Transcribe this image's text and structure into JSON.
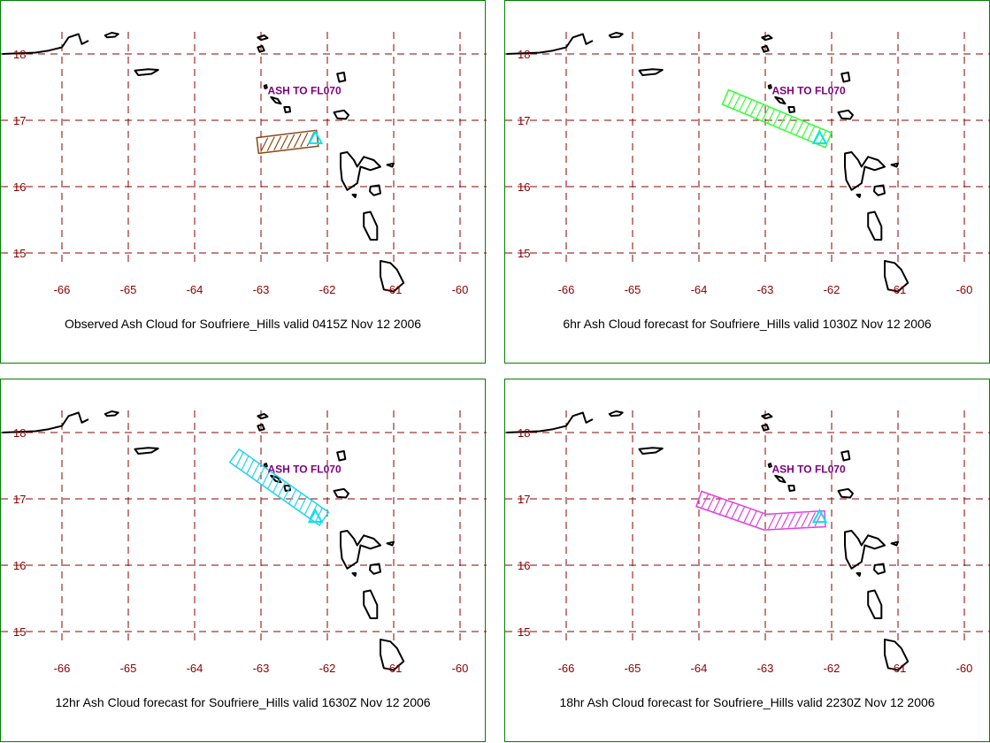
{
  "colors": {
    "frame": "#008000",
    "grid": "#8b0000",
    "tick_labels": "#8b0000",
    "coastline": "#000000",
    "annotation": "#800080",
    "vent_marker": "#00e5ee"
  },
  "map": {
    "lon_range": [
      -66.5,
      -59.8
    ],
    "lat_range": [
      14.5,
      18.4
    ],
    "lon_ticks": [
      -66,
      -65,
      -64,
      -63,
      -62,
      -61,
      -60
    ],
    "lat_ticks": [
      18,
      17,
      16,
      15
    ],
    "grid": "dashed"
  },
  "panels": [
    {
      "caption": "Observed Ash Cloud for Soufriere_Hills valid 0415Z Nov 12 2006",
      "annotation": "ASH TO FL070",
      "cloud_color": "#8b4513",
      "cloud_path": [
        [
          -63.05,
          16.62
        ],
        [
          -62.15,
          16.73
        ]
      ]
    },
    {
      "caption": "6hr Ash Cloud forecast for Soufriere_Hills valid 1030Z Nov 12 2006",
      "annotation": "ASH TO FL070",
      "cloud_color": "#33ff33",
      "cloud_path": [
        [
          -63.6,
          17.35
        ],
        [
          -62.05,
          16.7
        ]
      ]
    },
    {
      "caption": "12hr Ash Cloud forecast for Soufriere_Hills valid 1630Z Nov 12 2006",
      "annotation": "ASH TO FL070",
      "cloud_color": "#22d3ee",
      "cloud_path": [
        [
          -63.4,
          17.65
        ],
        [
          -62.05,
          16.7
        ]
      ]
    },
    {
      "caption": "18hr Ash Cloud forecast for Soufriere_Hills valid 2230Z Nov 12 2006",
      "annotation": "ASH TO FL070",
      "cloud_color": "#e040e0",
      "cloud_path": [
        [
          -64.0,
          17.0
        ],
        [
          -63.0,
          16.65
        ],
        [
          -62.1,
          16.7
        ]
      ]
    }
  ]
}
